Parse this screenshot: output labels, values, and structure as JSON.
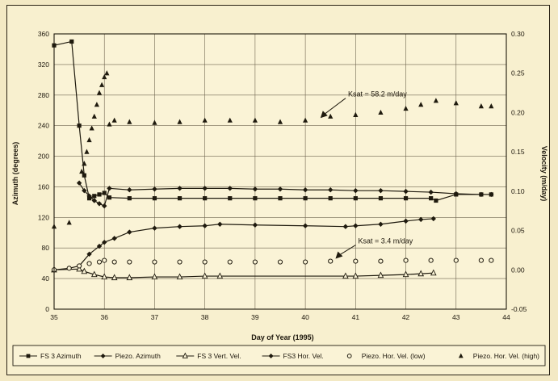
{
  "chart_data": {
    "type": "line",
    "title": "",
    "xlabel": "Day of Year (1995)",
    "ylabel_left": "Azimuth (degrees)",
    "ylabel_right": "Velocity (m/day)",
    "xlim": [
      35,
      44
    ],
    "ylim_left": [
      0,
      360
    ],
    "ylim_right": [
      -0.05,
      0.3
    ],
    "grid": true,
    "legend_position": "bottom",
    "x_ticks": [
      "35",
      "36",
      "37",
      "38",
      "39",
      "40",
      "41",
      "42",
      "43",
      "44"
    ],
    "y_left_ticks": [
      "0",
      "40",
      "80",
      "120",
      "160",
      "200",
      "240",
      "280",
      "320",
      "360"
    ],
    "y_right_ticks": [
      "-0.05",
      "0.00",
      "0.05",
      "0.10",
      "0.15",
      "0.20",
      "0.25",
      "0.30"
    ],
    "annotations": [
      {
        "text": "Ksat = 58.2 m/day",
        "x": 40.85,
        "y_left": 278,
        "arrow_to_x": 40.3,
        "arrow_to_y_left": 250
      },
      {
        "text": "Ksat = 3.4 m/day",
        "x": 41.05,
        "y_left": 86,
        "arrow_to_x": 40.6,
        "arrow_to_y_left": 66
      }
    ],
    "series": [
      {
        "name": "FS 3 Azimuth",
        "axis": "left",
        "marker": "square",
        "style": "solid",
        "x": [
          35.0,
          35.35,
          35.5,
          35.6,
          35.7,
          35.8,
          35.9,
          36.0,
          36.1,
          36.5,
          37.0,
          37.5,
          38.0,
          38.5,
          39.0,
          39.5,
          40.0,
          40.5,
          41.0,
          41.5,
          42.0,
          42.5,
          42.6,
          43.0,
          43.5,
          43.7
        ],
        "y": [
          345,
          350,
          240,
          175,
          145,
          148,
          150,
          152,
          146,
          145,
          145,
          145,
          145,
          145,
          145,
          145,
          145,
          145,
          145,
          145,
          145,
          145,
          142,
          150,
          150,
          150
        ]
      },
      {
        "name": "Piezo. Azimuth",
        "axis": "left",
        "marker": "diamond",
        "style": "solid",
        "x": [
          35.5,
          35.6,
          35.7,
          35.8,
          35.9,
          36.0,
          36.1,
          36.5,
          37.0,
          37.5,
          38.0,
          38.5,
          39.0,
          39.5,
          40.0,
          40.5,
          41.0,
          41.5,
          42.0,
          42.5,
          43.0,
          43.5,
          43.7
        ],
        "y": [
          165,
          155,
          148,
          142,
          138,
          135,
          158,
          156,
          157,
          158,
          158,
          158,
          157,
          157,
          156,
          156,
          155,
          155,
          154,
          153,
          151,
          150,
          150
        ]
      },
      {
        "name": "FS 3 Vert. Vel.",
        "axis": "right",
        "marker": "triangle-open",
        "style": "solid",
        "x": [
          35.0,
          35.5,
          35.6,
          35.8,
          36.0,
          36.2,
          36.5,
          37.0,
          37.5,
          38.0,
          38.3,
          40.8,
          41.0,
          41.5,
          42.0,
          42.3,
          42.55
        ],
        "y": [
          0.0,
          0.001,
          -0.002,
          -0.006,
          -0.009,
          -0.01,
          -0.01,
          -0.009,
          -0.009,
          -0.008,
          -0.008,
          -0.008,
          -0.008,
          -0.007,
          -0.006,
          -0.005,
          -0.004
        ]
      },
      {
        "name": "FS3 Hor. Vel.",
        "axis": "right",
        "marker": "diamond",
        "style": "solid",
        "x": [
          35.0,
          35.3,
          35.5,
          35.7,
          35.9,
          36.0,
          36.2,
          36.5,
          37.0,
          37.5,
          38.0,
          38.3,
          39.0,
          40.0,
          40.8,
          41.0,
          41.5,
          42.0,
          42.3,
          42.55
        ],
        "y": [
          0.0,
          0.002,
          0.005,
          0.02,
          0.03,
          0.035,
          0.04,
          0.048,
          0.053,
          0.055,
          0.056,
          0.058,
          0.057,
          0.056,
          0.055,
          0.056,
          0.058,
          0.062,
          0.064,
          0.065
        ]
      },
      {
        "name": "Piezo. Hor. Vel. (low)",
        "axis": "right",
        "marker": "circle-open",
        "style": "markers",
        "x": [
          35.0,
          35.3,
          35.5,
          35.7,
          35.9,
          36.0,
          36.2,
          36.5,
          37.0,
          37.5,
          38.0,
          38.5,
          39.0,
          39.5,
          40.0,
          40.5,
          41.0,
          41.5,
          42.0,
          42.5,
          43.0,
          43.5,
          43.7
        ],
        "y": [
          0.0,
          0.002,
          0.005,
          0.008,
          0.01,
          0.012,
          0.01,
          0.01,
          0.01,
          0.01,
          0.01,
          0.01,
          0.01,
          0.01,
          0.01,
          0.011,
          0.011,
          0.011,
          0.012,
          0.012,
          0.012,
          0.012,
          0.012
        ]
      },
      {
        "name": "Piezo. Hor. Vel. (high)",
        "axis": "right",
        "marker": "triangle",
        "style": "markers",
        "x": [
          35.0,
          35.3,
          35.55,
          35.6,
          35.65,
          35.7,
          35.75,
          35.8,
          35.85,
          35.9,
          35.95,
          36.0,
          36.05,
          36.1,
          36.2,
          36.5,
          37.0,
          37.5,
          38.0,
          38.5,
          39.0,
          39.5,
          40.0,
          40.5,
          41.0,
          41.5,
          42.0,
          42.3,
          42.6,
          43.0,
          43.5,
          43.7
        ],
        "y": [
          0.055,
          0.06,
          0.125,
          0.135,
          0.15,
          0.165,
          0.18,
          0.195,
          0.21,
          0.225,
          0.235,
          0.245,
          0.25,
          0.185,
          0.19,
          0.188,
          0.187,
          0.188,
          0.19,
          0.19,
          0.19,
          0.188,
          0.19,
          0.195,
          0.197,
          0.2,
          0.205,
          0.21,
          0.215,
          0.212,
          0.208,
          0.208
        ]
      }
    ]
  }
}
